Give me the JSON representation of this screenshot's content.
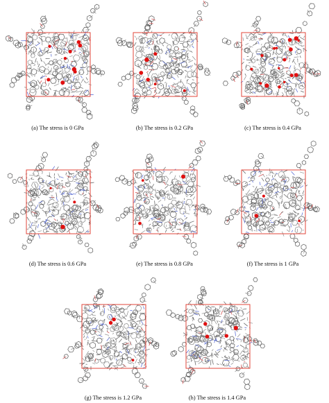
{
  "figure": {
    "panels": [
      {
        "caption": "(a) The stress is 0 GPa"
      },
      {
        "caption": "(b) The stress is 0.2 GPa"
      },
      {
        "caption": "(c) The stress is 0.4 GPa"
      },
      {
        "caption": "(d) The stress is 0.6 GPa"
      },
      {
        "caption": "(e) The stress is 0.8 GPa"
      },
      {
        "caption": "(f) The stress is 1 GPa"
      },
      {
        "caption": "(g) The stress is 1.2 GPa"
      },
      {
        "caption": "(h) The stress is 1.4 GPa"
      }
    ],
    "colors": {
      "cell_box": "#e0443a",
      "bonds": "#8a8a8a",
      "bonds_dark": "#5a5a5a",
      "nitrogen": "#4a5fd0",
      "oxygen_highlight": "#e01010"
    }
  }
}
